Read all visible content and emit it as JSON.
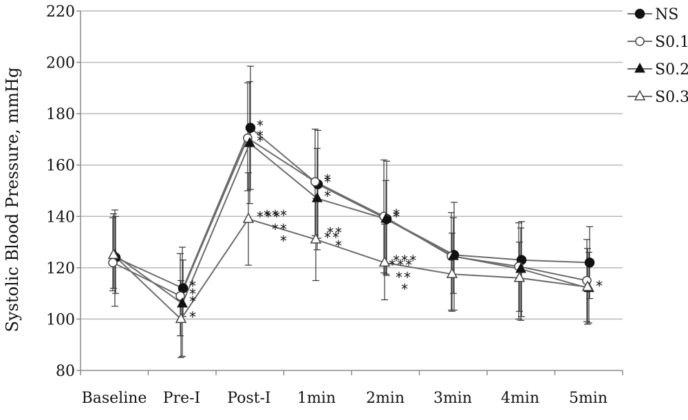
{
  "chart_data": {
    "type": "line",
    "ylabel": "Systolic Blood Pressure, mmHg",
    "xlabel": "",
    "title": "",
    "categories": [
      "Baseline",
      "Pre-I",
      "Post-I",
      "1min",
      "2min",
      "3min",
      "4min",
      "5min"
    ],
    "ylim": [
      80,
      220
    ],
    "yticks": [
      80,
      100,
      120,
      140,
      160,
      180,
      200,
      220
    ],
    "grid": true,
    "legend_position": "top-right",
    "series": [
      {
        "name": "NS",
        "marker": "circle-filled",
        "values": [
          124,
          112,
          174.5,
          152.5,
          139,
          125,
          123,
          122
        ],
        "err_low": [
          110,
          101,
          150.5,
          131.5,
          117,
          103.5,
          101,
          108
        ],
        "err_high": [
          140,
          123,
          198.5,
          173.5,
          161.5,
          145.5,
          138,
          136
        ],
        "annotations": [
          "",
          "*",
          "*",
          "*",
          "*",
          "",
          "",
          ""
        ]
      },
      {
        "name": "S0.1",
        "marker": "circle-open",
        "values": [
          122,
          109,
          170.5,
          153.5,
          140,
          124.5,
          120.5,
          115
        ],
        "err_low": [
          111,
          93.5,
          150,
          132.5,
          118,
          103.5,
          100,
          99
        ],
        "err_high": [
          139.5,
          125.5,
          192,
          174,
          162,
          141.5,
          137.5,
          131
        ],
        "annotations": [
          "",
          "*",
          "*",
          "*",
          "*",
          "",
          "",
          ""
        ]
      },
      {
        "name": "S0.2",
        "marker": "triangle-filled",
        "values": [
          125,
          106,
          168.5,
          147,
          139,
          124.5,
          119.5,
          112
        ],
        "err_low": [
          105,
          85.5,
          145,
          127,
          117.5,
          110,
          99.5,
          98.5
        ],
        "err_high": [
          142.5,
          128,
          192.5,
          166.5,
          154,
          139.5,
          135.5,
          126
        ],
        "annotations": [
          "",
          "*",
          "*",
          "*",
          "*",
          "",
          "",
          "*"
        ]
      },
      {
        "name": "S0.3",
        "marker": "triangle-open",
        "values": [
          125,
          100,
          139,
          131,
          122,
          117.5,
          116,
          112.5
        ],
        "err_low": [
          112,
          85,
          121,
          115,
          107.5,
          103,
          103,
          98
        ],
        "err_high": [
          141,
          115,
          157,
          147,
          137,
          133.5,
          130,
          127.5
        ],
        "annotations": [
          "",
          "*",
          "***",
          "**",
          "***",
          "",
          "",
          ""
        ]
      }
    ],
    "extra_annotations": [
      {
        "x": "Post-I",
        "text": "***"
      },
      {
        "x": "Post-I",
        "text": "**"
      },
      {
        "x": "Post-I",
        "text": "*"
      },
      {
        "x": "1min",
        "text": "**"
      },
      {
        "x": "1min",
        "text": "*"
      },
      {
        "x": "2min",
        "text": "***"
      },
      {
        "x": "2min",
        "text": "**"
      },
      {
        "x": "2min",
        "text": "*"
      }
    ],
    "colors": {
      "line": "#6b6b6b",
      "grid": "#b8b8b8",
      "marker": "#111111",
      "axis": "#8a8a8a"
    }
  }
}
